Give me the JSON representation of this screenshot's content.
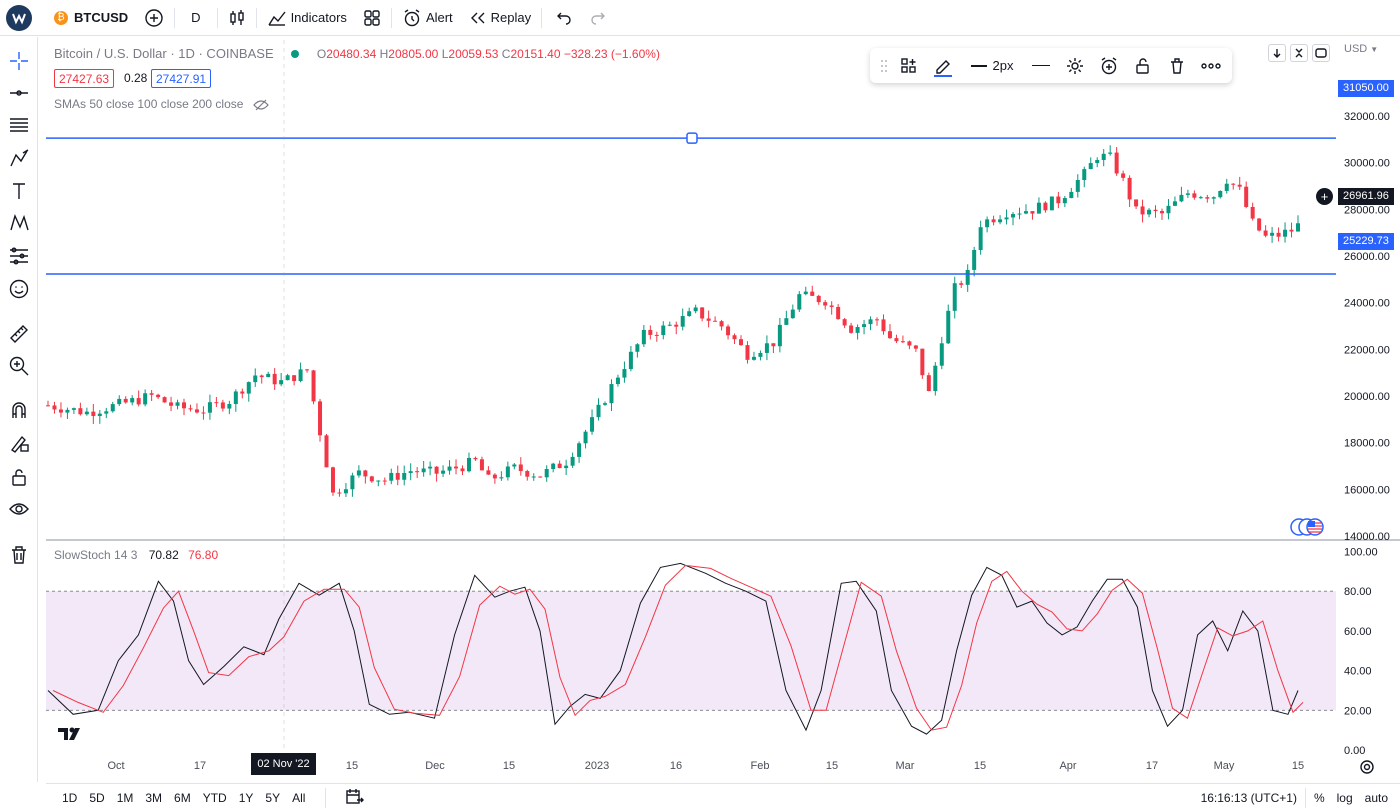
{
  "topbar": {
    "symbol": "BTCUSD",
    "coin_glyph": "₿",
    "interval": "D",
    "indicators_label": "Indicators",
    "alert_label": "Alert",
    "replay_label": "Replay"
  },
  "legend": {
    "title": "Bitcoin / U.S. Dollar · 1D · COINBASE",
    "o_label": "O",
    "o": "20480.34",
    "h_label": "H",
    "h": "20805.00",
    "l_label": "L",
    "l": "20059.53",
    "c_label": "C",
    "c": "20151.40",
    "change": "−328.23 (−1.60%)",
    "bid": "27427.63",
    "spread": "0.28",
    "ask": "27427.91",
    "sma_label": "SMAs 50 close 100 close 200 close"
  },
  "float_toolbar": {
    "width_label": "2px"
  },
  "price_axis": {
    "currency": "USD",
    "ticks": [
      "32000.00",
      "30000.00",
      "28000.00",
      "26000.00",
      "24000.00",
      "22000.00",
      "20000.00",
      "18000.00",
      "16000.00",
      "14000.00"
    ],
    "stoch_ticks": [
      "100.00",
      "80.00",
      "60.00",
      "40.00",
      "20.00",
      "0.00"
    ],
    "line_upper": "31050.00",
    "line_lower": "25229.73",
    "current": "26961.96"
  },
  "stoch": {
    "label": "SlowStoch 14 3",
    "k": "70.82",
    "d": "76.80"
  },
  "time_axis": {
    "labels": [
      "Oct",
      "17",
      "15",
      "Dec",
      "15",
      "2023",
      "16",
      "Feb",
      "15",
      "Mar",
      "15",
      "Apr",
      "17",
      "May",
      "15"
    ],
    "highlight": "02 Nov '22"
  },
  "bottombar": {
    "ranges": [
      "1D",
      "5D",
      "1M",
      "3M",
      "6M",
      "YTD",
      "1Y",
      "5Y",
      "All"
    ],
    "clock": "16:16:13 (UTC+1)",
    "percent": "%",
    "log": "log",
    "auto": "auto"
  },
  "colors": {
    "up": "#089981",
    "down": "#f23645",
    "line": "#2962ff",
    "k": "#131722",
    "d": "#f23645",
    "band": "#f3e8f7"
  }
}
